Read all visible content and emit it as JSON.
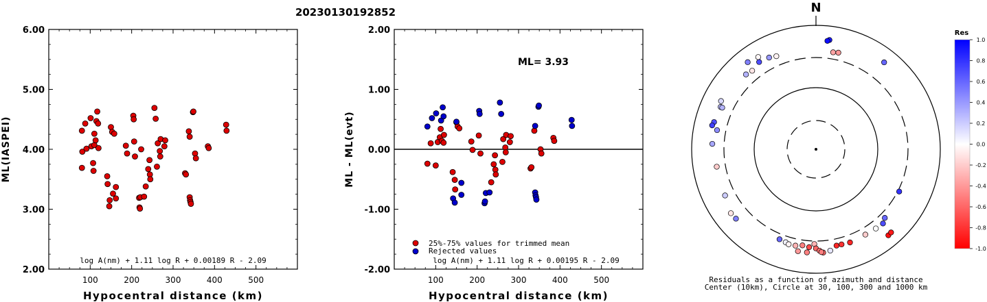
{
  "title": "20230130192852",
  "chart_data": [
    {
      "type": "scatter",
      "id": "ml-vs-distance",
      "xlabel": "Hypocentral distance (km)",
      "ylabel": "ML(IASPEI)",
      "xlim": [
        0,
        600
      ],
      "ylim": [
        2.0,
        6.0
      ],
      "xticks": [
        "100",
        "200",
        "300",
        "400",
        "500"
      ],
      "yticks": [
        "2.00",
        "3.00",
        "4.00",
        "5.00",
        "6.00"
      ],
      "formula": "log A(nm) + 1.11 log R + 0.00189 R - 2.09",
      "grid": false,
      "series": [
        {
          "color": "#dd0000",
          "points": [
            [
              80,
              4.31
            ],
            [
              81,
              3.96
            ],
            [
              80,
              3.69
            ],
            [
              88,
              4.43
            ],
            [
              91,
              4.01
            ],
            [
              101,
              4.52
            ],
            [
              103,
              4.05
            ],
            [
              107,
              3.77
            ],
            [
              108,
              3.64
            ],
            [
              110,
              4.26
            ],
            [
              110,
              4.07
            ],
            [
              113,
              4.15
            ],
            [
              115,
              4.47
            ],
            [
              117,
              4.63
            ],
            [
              119,
              4.43
            ],
            [
              120,
              4.02
            ],
            [
              141,
              3.55
            ],
            [
              142,
              3.42
            ],
            [
              146,
              3.05
            ],
            [
              147,
              3.15
            ],
            [
              150,
              4.37
            ],
            [
              153,
              4.29
            ],
            [
              155,
              3.26
            ],
            [
              158,
              4.26
            ],
            [
              162,
              3.18
            ],
            [
              162,
              3.37
            ],
            [
              186,
              4.06
            ],
            [
              189,
              3.93
            ],
            [
              204,
              4.56
            ],
            [
              205,
              4.5
            ],
            [
              206,
              4.13
            ],
            [
              208,
              3.88
            ],
            [
              218,
              3.19
            ],
            [
              219,
              3.03
            ],
            [
              220,
              3.01
            ],
            [
              221,
              3.2
            ],
            [
              223,
              4.0
            ],
            [
              230,
              3.21
            ],
            [
              234,
              3.38
            ],
            [
              240,
              3.67
            ],
            [
              243,
              3.82
            ],
            [
              244,
              3.58
            ],
            [
              245,
              3.5
            ],
            [
              255,
              4.69
            ],
            [
              258,
              4.51
            ],
            [
              261,
              3.71
            ],
            [
              263,
              4.1
            ],
            [
              268,
              3.97
            ],
            [
              269,
              3.88
            ],
            [
              270,
              4.17
            ],
            [
              279,
              4.05
            ],
            [
              281,
              4.15
            ],
            [
              329,
              3.6
            ],
            [
              331,
              3.58
            ],
            [
              338,
              4.3
            ],
            [
              340,
              4.21
            ],
            [
              340,
              3.2
            ],
            [
              341,
              3.15
            ],
            [
              342,
              3.12
            ],
            [
              343,
              3.09
            ],
            [
              348,
              4.62
            ],
            [
              349,
              4.63
            ],
            [
              353,
              3.93
            ],
            [
              355,
              3.85
            ],
            [
              384,
              4.05
            ],
            [
              386,
              4.02
            ],
            [
              428,
              4.41
            ],
            [
              429,
              4.31
            ]
          ]
        }
      ]
    },
    {
      "type": "scatter",
      "id": "residual-vs-distance",
      "xlabel": "Hypocentral distance (km)",
      "ylabel": "ML - ML(evt)",
      "xlim": [
        0,
        600
      ],
      "ylim": [
        -2.0,
        2.0
      ],
      "xticks": [
        "100",
        "200",
        "300",
        "400",
        "500"
      ],
      "yticks": [
        "-2.00",
        "-1.00",
        "0.00",
        "1.00",
        "2.00"
      ],
      "annotation": "ML= 3.93",
      "formula": "log A(nm) + 1.11 log R + 0.00195 R - 2.09",
      "reference_line_y": 0,
      "grid": false,
      "legend_position": "bottom-left",
      "series": [
        {
          "name": "25%-75% values for trimmed mean",
          "color": "#dd0000",
          "points": [
            [
              80,
              -0.24
            ],
            [
              88,
              0.1
            ],
            [
              100,
              -0.27
            ],
            [
              105,
              0.12
            ],
            [
              110,
              0.2
            ],
            [
              112,
              0.34
            ],
            [
              115,
              0.14
            ],
            [
              119,
              0.11
            ],
            [
              120,
              0.24
            ],
            [
              141,
              -0.38
            ],
            [
              146,
              -0.51
            ],
            [
              147,
              -0.67
            ],
            [
              150,
              0.45
            ],
            [
              153,
              0.38
            ],
            [
              157,
              0.35
            ],
            [
              186,
              0.13
            ],
            [
              189,
              -0.01
            ],
            [
              204,
              0.23
            ],
            [
              208,
              -0.07
            ],
            [
              234,
              -0.55
            ],
            [
              240,
              -0.25
            ],
            [
              243,
              -0.1
            ],
            [
              244,
              -0.34
            ],
            [
              245,
              -0.42
            ],
            [
              261,
              -0.21
            ],
            [
              263,
              0.17
            ],
            [
              268,
              0.03
            ],
            [
              269,
              -0.05
            ],
            [
              270,
              0.24
            ],
            [
              279,
              0.12
            ],
            [
              281,
              0.22
            ],
            [
              329,
              -0.32
            ],
            [
              331,
              -0.3
            ],
            [
              338,
              0.31
            ],
            [
              353,
              0.0
            ],
            [
              355,
              -0.07
            ],
            [
              384,
              0.19
            ],
            [
              386,
              0.14
            ]
          ]
        },
        {
          "name": "Rejected values",
          "color": "#0000cc",
          "points": [
            [
              80,
              0.38
            ],
            [
              91,
              0.52
            ],
            [
              101,
              0.6
            ],
            [
              113,
              0.48
            ],
            [
              117,
              0.7
            ],
            [
              119,
              0.55
            ],
            [
              142,
              -0.82
            ],
            [
              146,
              -0.89
            ],
            [
              150,
              0.46
            ],
            [
              162,
              -0.76
            ],
            [
              162,
              -0.56
            ],
            [
              205,
              0.64
            ],
            [
              206,
              0.59
            ],
            [
              218,
              -0.9
            ],
            [
              219,
              -0.87
            ],
            [
              221,
              -0.73
            ],
            [
              230,
              -0.72
            ],
            [
              255,
              0.78
            ],
            [
              258,
              0.59
            ],
            [
              340,
              0.39
            ],
            [
              340,
              -0.72
            ],
            [
              341,
              -0.77
            ],
            [
              342,
              -0.8
            ],
            [
              343,
              -0.84
            ],
            [
              348,
              0.71
            ],
            [
              349,
              0.73
            ],
            [
              428,
              0.49
            ],
            [
              429,
              0.39
            ]
          ]
        }
      ]
    },
    {
      "type": "polar-scatter",
      "id": "residual-map",
      "north_label": "N",
      "caption": [
        "Residuals as a function of azimuth and distance",
        "Center (10km), Circle at 30, 100, 300 and 1000 km"
      ],
      "rings_km": [
        10,
        30,
        100,
        300,
        1000
      ],
      "dashed_rings_km": [
        30,
        300
      ],
      "colorbar": {
        "title": "Res",
        "min": -1.0,
        "max": 1.0,
        "ticks": [
          "1.0",
          "0.8",
          "0.6",
          "0.4",
          "0.2",
          "0.0",
          "-0.2",
          "-0.4",
          "-0.6",
          "-0.8",
          "-1.0"
        ]
      },
      "points_az_dist_res": [
        [
          7,
          600,
          0.9
        ],
        [
          6,
          575,
          0.95
        ],
        [
          38,
          605,
          0.6
        ],
        [
          337,
          430,
          -0.05
        ],
        [
          333,
          460,
          0.4
        ],
        [
          327,
          480,
          0.7
        ],
        [
          321,
          430,
          -0.1
        ],
        [
          317,
          450,
          0.3
        ],
        [
          328,
          570,
          -0.03
        ],
        [
          322,
          610,
          0.5
        ],
        [
          297,
          520,
          0.15
        ],
        [
          294,
          480,
          0.25
        ],
        [
          285,
          500,
          0.7
        ],
        [
          283,
          520,
          0.75
        ],
        [
          281,
          420,
          0.45
        ],
        [
          273,
          470,
          0.35
        ],
        [
          294,
          450,
          0.3
        ],
        [
          260,
          420,
          -0.2
        ],
        [
          243,
          440,
          0.2
        ],
        [
          233,
          520,
          -0.1
        ],
        [
          229,
          510,
          0.5
        ],
        [
          202,
          370,
          0.6
        ],
        [
          198,
          380,
          0.05
        ],
        [
          196,
          395,
          -0.05
        ],
        [
          192,
          390,
          -0.3
        ],
        [
          188,
          370,
          -0.5
        ],
        [
          184,
          385,
          -0.7
        ],
        [
          181,
          340,
          -0.3
        ],
        [
          180,
          400,
          -0.6
        ],
        [
          178,
          435,
          -0.55
        ],
        [
          176,
          470,
          -0.6
        ],
        [
          172,
          450,
          0.1
        ],
        [
          168,
          390,
          -0.85
        ],
        [
          165,
          390,
          -0.8
        ],
        [
          160,
          400,
          -0.85
        ],
        [
          150,
          390,
          -0.2
        ],
        [
          143,
          400,
          0.0
        ],
        [
          138,
          410,
          0.7
        ],
        [
          135,
          370,
          0.6
        ],
        [
          140,
          650,
          -0.95
        ],
        [
          138,
          640,
          -0.9
        ],
        [
          117,
          320,
          0.8
        ],
        [
          13,
          400,
          -0.4
        ],
        [
          10,
          390,
          -0.35
        ],
        [
          177,
          460,
          -0.5
        ],
        [
          185,
          470,
          -0.5
        ],
        [
          190,
          470,
          -0.4
        ]
      ]
    }
  ]
}
